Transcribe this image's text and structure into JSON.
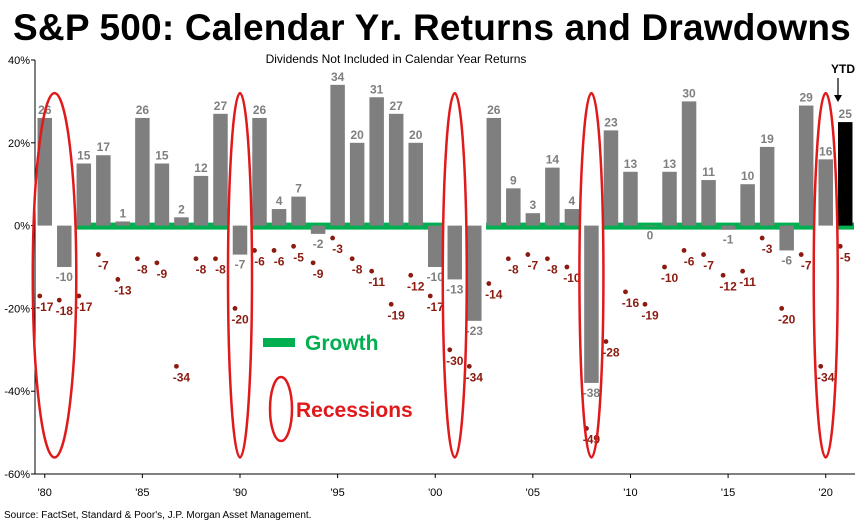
{
  "header": {
    "title": "S&P 500: Calendar Yr. Returns and Drawdowns",
    "subtitle": "Dividends  Not Included  in Calendar Year Returns",
    "source": "Source: FactSet, Standard & Poor's, J.P. Morgan Asset Management."
  },
  "legend": {
    "growth_label": "Growth",
    "recessions_label": "Recessions",
    "ytd_label": "YTD"
  },
  "colors": {
    "bar": "#7f7f7f",
    "ytd_bar": "#000000",
    "drawdown": "#8b1a10",
    "growth": "#00b050",
    "recession": "#e0191b"
  },
  "chart_data": {
    "type": "bar",
    "years": [
      1980,
      1981,
      1982,
      1983,
      1984,
      1985,
      1986,
      1987,
      1988,
      1989,
      1990,
      1991,
      1992,
      1993,
      1994,
      1995,
      1996,
      1997,
      1998,
      1999,
      2000,
      2001,
      2002,
      2003,
      2004,
      2005,
      2006,
      2007,
      2008,
      2009,
      2010,
      2011,
      2012,
      2013,
      2014,
      2015,
      2016,
      2017,
      2018,
      2019,
      2020,
      2021
    ],
    "x_tick_labels": [
      "'80",
      "'85",
      "'90",
      "'95",
      "'00",
      "'05",
      "'10",
      "'15",
      "'20"
    ],
    "x_tick_years": [
      1980,
      1985,
      1990,
      1995,
      2000,
      2005,
      2010,
      2015,
      2020
    ],
    "series": [
      {
        "name": "",
        "values": [
          26,
          -10,
          15,
          17,
          1,
          26,
          15,
          2,
          12,
          27,
          -7,
          26,
          4,
          7,
          -2,
          34,
          20,
          31,
          27,
          20,
          -10,
          -13,
          -23,
          26,
          9,
          3,
          14,
          4,
          -38,
          23,
          13,
          0,
          13,
          30,
          11,
          -1,
          10,
          19,
          -6,
          29,
          16,
          25
        ]
      },
      {
        "name": "",
        "values": [
          -17,
          -18,
          -17,
          -7,
          -13,
          -8,
          -9,
          -34,
          -8,
          -8,
          -20,
          -6,
          -6,
          -5,
          -9,
          -3,
          -8,
          -11,
          -19,
          -12,
          -17,
          -30,
          -34,
          -14,
          -8,
          -7,
          -8,
          -10,
          -49,
          -28,
          -16,
          -19,
          -10,
          -6,
          -7,
          -12,
          -11,
          -3,
          -20,
          -7,
          -34,
          -5
        ]
      }
    ],
    "bar_labels": [
      "26",
      "-10",
      "15",
      "17",
      "1",
      "26",
      "15",
      "2",
      "12",
      "27",
      "-7",
      "26",
      "4",
      "7",
      "-2",
      "34",
      "20",
      "31",
      "27",
      "20",
      "-10",
      "-13",
      "-23",
      "26",
      "9",
      "3",
      "14",
      "4",
      "-38",
      "23",
      "13",
      "0",
      "13",
      "30",
      "11",
      "-1",
      "10",
      "19",
      "-6",
      "29",
      "16",
      "25"
    ],
    "drawdown_labels": [
      "-17",
      "-18",
      "-17",
      "-7",
      "-13",
      "-8",
      "-9",
      "-34",
      "-8",
      "-8",
      "-20",
      "-6",
      "-6",
      "-5",
      "-9",
      "-3",
      "-8",
      "-11",
      "-19",
      "-12",
      "-17",
      "-30",
      "-34",
      "-14",
      "-8",
      "-7",
      "-8",
      "-10",
      "-49",
      "-28",
      "-16",
      "-19",
      "-10",
      "-6",
      "-7",
      "-12",
      "-11",
      "-3",
      "-20",
      "-7",
      "-34",
      "-5"
    ],
    "ytd_year": 2021,
    "y_ticks": [
      40,
      20,
      0,
      -20,
      -40,
      -60
    ],
    "y_tick_labels": [
      "40%",
      "20%",
      "0%",
      "-20%",
      "-40%",
      "-60%"
    ],
    "ylim": [
      -60,
      40
    ],
    "recessions": [
      [
        1980,
        1981
      ],
      [
        1990,
        1990
      ],
      [
        2001,
        2001
      ],
      [
        2008,
        2008
      ],
      [
        2020,
        2020
      ]
    ],
    "growth_periods": [
      [
        1982,
        1989
      ],
      [
        1991,
        2000
      ],
      [
        2003,
        2007
      ],
      [
        2009,
        2019
      ],
      [
        2021,
        2021
      ]
    ]
  }
}
